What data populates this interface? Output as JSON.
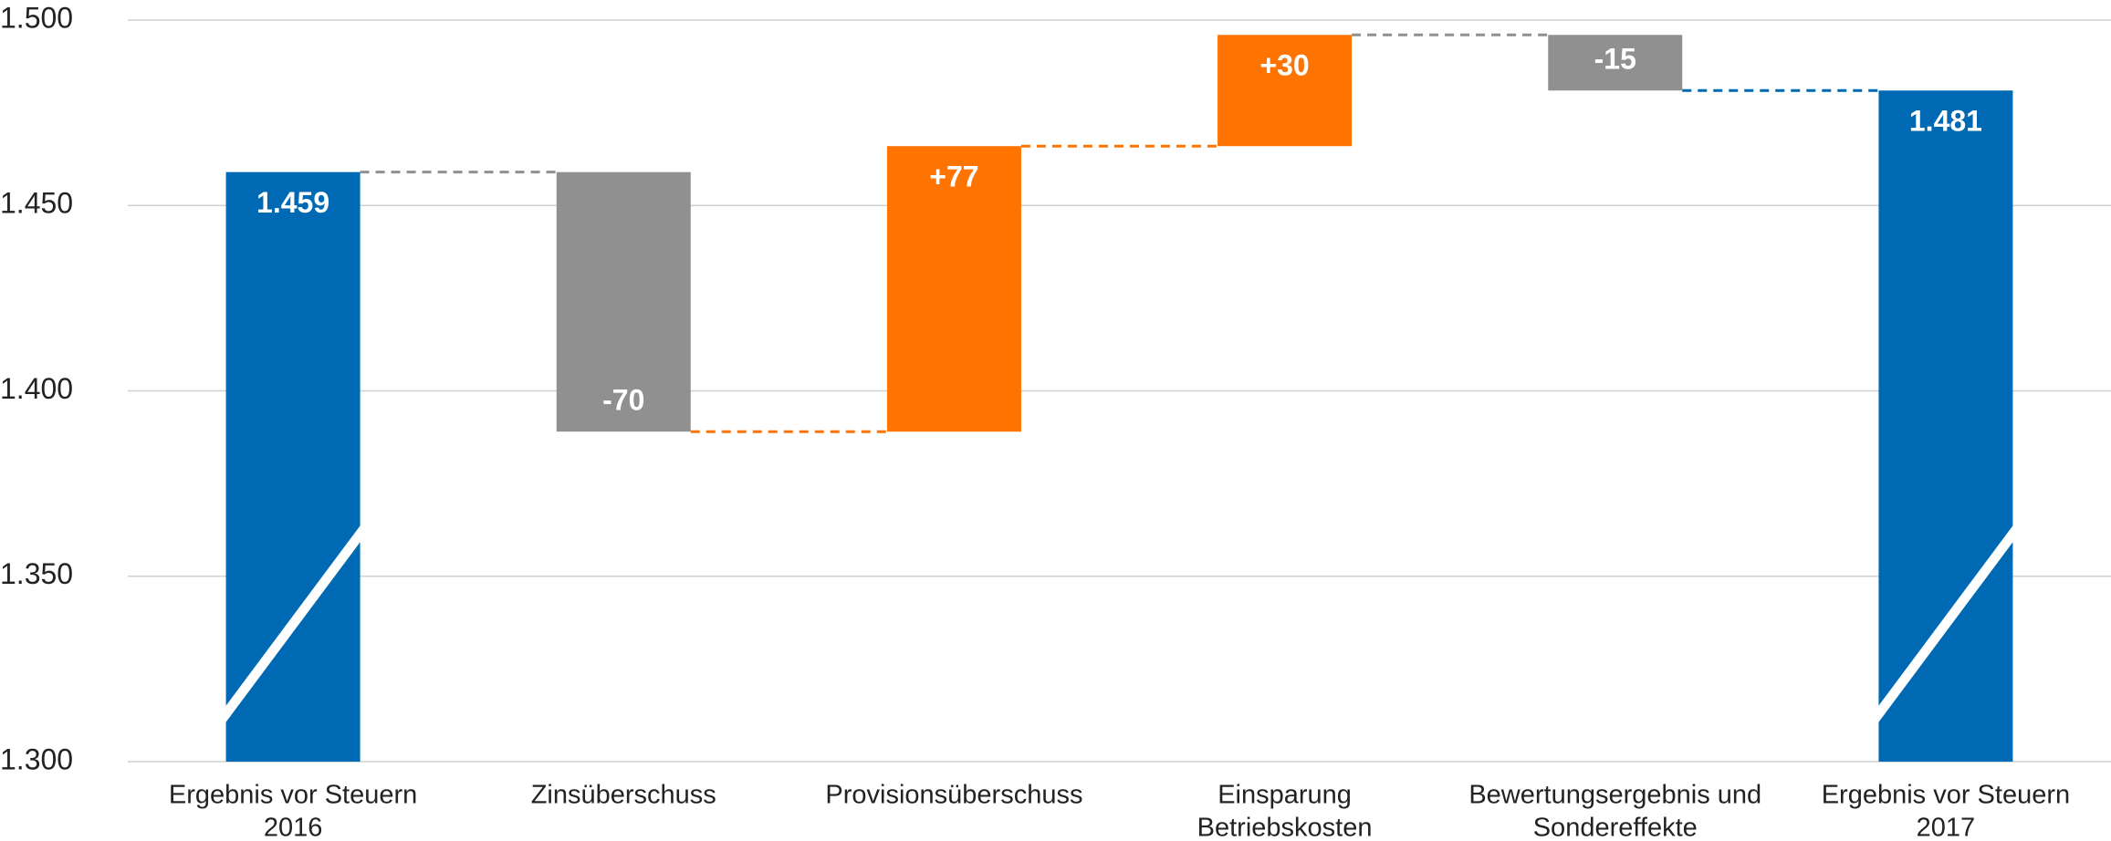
{
  "chart_data": {
    "type": "waterfall",
    "categories": [
      [
        "Ergebnis vor Steuern",
        "2016"
      ],
      [
        "Zinsüberschuss"
      ],
      [
        "Provisionsüberschuss"
      ],
      [
        "Einsparung",
        "Betriebskosten"
      ],
      [
        "Bewertungsergebnis und",
        "Sondereffekte"
      ],
      [
        "Ergebnis vor Steuern",
        "2017"
      ]
    ],
    "values": [
      1459,
      -70,
      77,
      30,
      -15,
      1481
    ],
    "value_labels": [
      "1.459",
      "-70",
      "+77",
      "+30",
      "-15",
      "1.481"
    ],
    "totals": [
      true,
      false,
      false,
      false,
      false,
      true
    ],
    "colors": [
      "#0069b4",
      "#909090",
      "#ff7300",
      "#ff7300",
      "#909090",
      "#0069b4"
    ],
    "ylim": [
      1300,
      1500
    ],
    "yticks": [
      {
        "value": 1300,
        "label": "1.300"
      },
      {
        "value": 1350,
        "label": "1.350"
      },
      {
        "value": 1400,
        "label": "1.400"
      },
      {
        "value": 1450,
        "label": "1.450"
      },
      {
        "value": 1500,
        "label": "1.500"
      }
    ],
    "grid": true
  }
}
